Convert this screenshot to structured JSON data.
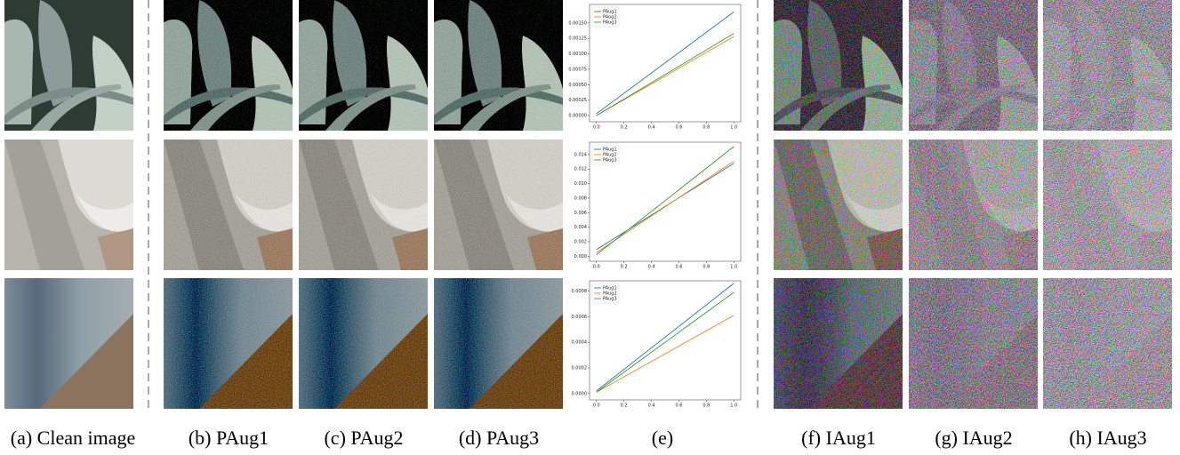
{
  "captions": [
    "(a) Clean image",
    "(b) PAug1",
    "(c) PAug2",
    "(d) PAug3",
    "(e)",
    "(f) IAug1",
    "(g) IAug2",
    "(h) IAug3"
  ],
  "chart_data": [
    {
      "type": "line",
      "x": [
        0,
        1
      ],
      "series": [
        {
          "name": "PAug1",
          "color": "#1f77b4",
          "values": [
            3e-05,
            0.00168
          ]
        },
        {
          "name": "PAug2",
          "color": "#ff7f0e",
          "values": [
            0.0,
            0.00128
          ]
        },
        {
          "name": "PAug3",
          "color": "#2ca02c",
          "values": [
            0.0,
            0.00133
          ]
        }
      ],
      "xlim": [
        -0.05,
        1.05
      ],
      "ylim": [
        -0.0001,
        0.0018
      ],
      "xticks": [
        {
          "value": 0,
          "label": "0.0"
        },
        {
          "value": 0.2,
          "label": "0.2"
        },
        {
          "value": 0.4,
          "label": "0.4"
        },
        {
          "value": 0.6,
          "label": "0.6"
        },
        {
          "value": 0.8,
          "label": "0.8"
        },
        {
          "value": 1,
          "label": "1.0"
        }
      ],
      "yticks": [
        {
          "value": 0,
          "label": "0.00000"
        },
        {
          "value": 0.00025,
          "label": "0.00025"
        },
        {
          "value": 0.0005,
          "label": "0.00050"
        },
        {
          "value": 0.00075,
          "label": "0.00075"
        },
        {
          "value": 0.001,
          "label": "0.00100"
        },
        {
          "value": 0.00125,
          "label": "0.00125"
        },
        {
          "value": 0.0015,
          "label": "0.00150"
        }
      ],
      "legend": "upper left"
    },
    {
      "type": "line",
      "x": [
        0,
        1
      ],
      "series": [
        {
          "name": "PAug1",
          "color": "#1f77b4",
          "values": [
            0.0009,
            0.0128
          ]
        },
        {
          "name": "PAug2",
          "color": "#ff7f0e",
          "values": [
            0.0005,
            0.0131
          ]
        },
        {
          "name": "PAug3",
          "color": "#2ca02c",
          "values": [
            0.0002,
            0.0151
          ]
        }
      ],
      "xlim": [
        -0.05,
        1.05
      ],
      "ylim": [
        -0.0007,
        0.0157
      ],
      "xticks": [
        {
          "value": 0,
          "label": "0.0"
        },
        {
          "value": 0.2,
          "label": "0.2"
        },
        {
          "value": 0.4,
          "label": "0.4"
        },
        {
          "value": 0.6,
          "label": "0.6"
        },
        {
          "value": 0.8,
          "label": "0.8"
        },
        {
          "value": 1,
          "label": "1.0"
        }
      ],
      "yticks": [
        {
          "value": 0,
          "label": "0.000"
        },
        {
          "value": 0.002,
          "label": "0.002"
        },
        {
          "value": 0.004,
          "label": "0.004"
        },
        {
          "value": 0.006,
          "label": "0.006"
        },
        {
          "value": 0.008,
          "label": "0.008"
        },
        {
          "value": 0.01,
          "label": "0.010"
        },
        {
          "value": 0.012,
          "label": "0.012"
        },
        {
          "value": 0.014,
          "label": "0.014"
        }
      ],
      "legend": "upper left"
    },
    {
      "type": "line",
      "x": [
        0,
        1
      ],
      "series": [
        {
          "name": "PAug1",
          "color": "#1f77b4",
          "values": [
            2e-05,
            0.00086
          ]
        },
        {
          "name": "PAug2",
          "color": "#ff7f0e",
          "values": [
            1e-05,
            0.00061
          ]
        },
        {
          "name": "PAug3",
          "color": "#2ca02c",
          "values": [
            1e-05,
            0.00079
          ]
        }
      ],
      "xlim": [
        -0.05,
        1.05
      ],
      "ylim": [
        -5e-05,
        0.00088
      ],
      "xticks": [
        {
          "value": 0,
          "label": "0.0"
        },
        {
          "value": 0.2,
          "label": "0.2"
        },
        {
          "value": 0.4,
          "label": "0.4"
        },
        {
          "value": 0.6,
          "label": "0.6"
        },
        {
          "value": 0.8,
          "label": "0.8"
        },
        {
          "value": 1,
          "label": "1.0"
        }
      ],
      "yticks": [
        {
          "value": 0,
          "label": "0.0000"
        },
        {
          "value": 0.0002,
          "label": "0.0002"
        },
        {
          "value": 0.0004,
          "label": "0.0004"
        },
        {
          "value": 0.0006,
          "label": "0.0006"
        },
        {
          "value": 0.0008,
          "label": "0.0008"
        }
      ],
      "legend": "upper left"
    }
  ]
}
